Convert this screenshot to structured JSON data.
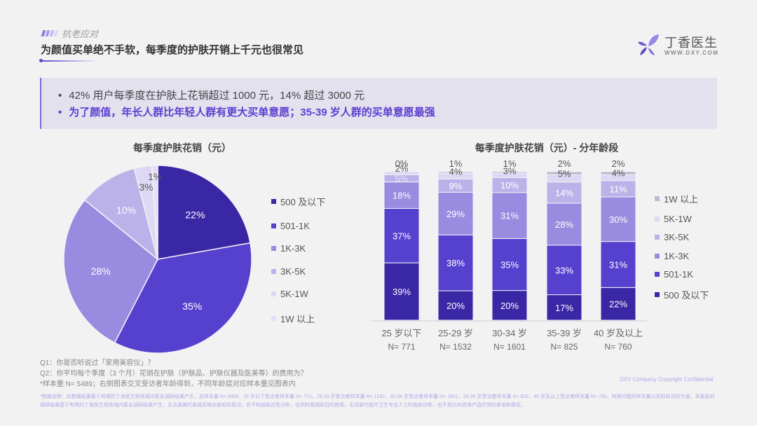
{
  "header": {
    "section_tag": "抗老应对",
    "title": "为颜值买单绝不手软，每季度的护肤开销上千元也很常见"
  },
  "logo": {
    "name": "丁香医生",
    "url": "WWW.DXY.COM"
  },
  "insights": [
    {
      "bullet": "•",
      "text": "42%  用户每季度在护肤上花销超过 1000 元，14%  超过 3000 元"
    },
    {
      "bullet": "•",
      "text": "为了颜值，年长人群比年轻人群有更大买单意愿；35-39 岁人群的买单意愿最强"
    }
  ],
  "colors": {
    "accent": "#5b47c9",
    "series": [
      "#3a27a6",
      "#5641cf",
      "#998be0",
      "#bcb2ea",
      "#ddd8f3",
      "#e9dcf8"
    ],
    "series_bar_top": "#bdbad0"
  },
  "chart_data": [
    {
      "type": "pie",
      "title": "每季度护肤花销（元）",
      "categories": [
        "500 及以下",
        "501-1K",
        "1K-3K",
        "3K-5K",
        "5K-1W",
        "1W 以上"
      ],
      "values": [
        22,
        35,
        28,
        10,
        3,
        1
      ],
      "labels": [
        "22%",
        "35%",
        "28%",
        "10%",
        "3%",
        "1%"
      ],
      "unit": "%",
      "legend_position": "right"
    },
    {
      "type": "bar",
      "stacked": true,
      "orientation": "vertical",
      "title": "每季度护肤花销（元）- 分年龄段",
      "categories": [
        "25 岁以下",
        "25-29 岁",
        "30-34 岁",
        "35-39 岁",
        "40 岁及以上"
      ],
      "sample_sizes": [
        "N= 771",
        "N= 1532",
        "N= 1601",
        "N= 825",
        "N= 760"
      ],
      "series": [
        {
          "name": "500 及以下",
          "values": [
            39,
            20,
            20,
            17,
            22
          ]
        },
        {
          "name": "501-1K",
          "values": [
            37,
            38,
            35,
            33,
            31
          ]
        },
        {
          "name": "1K-3K",
          "values": [
            18,
            29,
            31,
            28,
            30
          ]
        },
        {
          "name": "3K-5K",
          "values": [
            5,
            9,
            10,
            14,
            11
          ]
        },
        {
          "name": "5K-1W",
          "values": [
            2,
            4,
            3,
            5,
            4
          ]
        },
        {
          "name": "1W 以上",
          "values": [
            0,
            1,
            1,
            2,
            2
          ]
        }
      ],
      "unit": "%",
      "ylim": [
        0,
        100
      ],
      "grid": false,
      "legend_position": "right",
      "legend_order": [
        "1W 以上",
        "5K-1W",
        "3K-5K",
        "1K-3K",
        "501-1K",
        "500 及以下"
      ]
    }
  ],
  "footnotes": {
    "q1": "Q1：你是否听说过「家用美容仪」？",
    "q2": "Q2：你平均每个季度（3 个月）花销在护肤（护肤品、护肤仪器及医美等）的费用为？",
    "sample": "*样本量 N= 5489；右侧图表交叉受访者年龄得到，不同年龄层对应样本量见图表内",
    "disclaimer": "*数据说明：此数据结果基于有限的丁香医生矩阵域内匿名调研结果产生，总样本量 N= 5489，25 岁以下受访者样本量 N= 771，25-29 岁受访者样本量 N= 1532，30-34 岁受访者样本量 N= 1601，35-39 岁受访者样本量 N= 825，40 岁及以上受访者样本量 N= 760，特殊问题的样本量以实际标识的为准。本报告的调研结果基于有限的丁香医生矩阵域内匿名调研结果产生，无法准确代表或反映全部实际情况，亦不构成结论性分析，仅供科普调研目的使用，无法替代医疗卫生专业人士的临床诊断，也不视为对具体产品疗效的承诺和保证。",
    "copyright": "DXY Company Copyright Confidential"
  }
}
